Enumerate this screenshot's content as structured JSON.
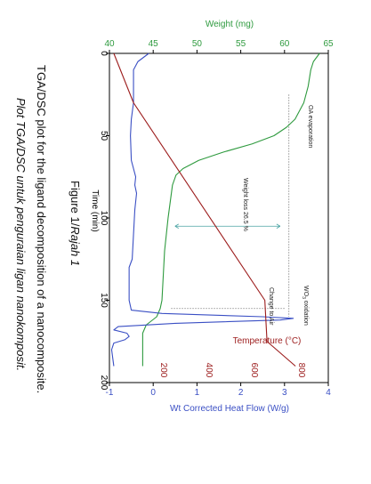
{
  "figure": {
    "caption_title_prefix": "Figure 1/",
    "caption_title_italic": "Rajah 1",
    "caption_en": "TGA/DSC plot for the ligand decomposition of a nanocomposite.",
    "caption_ms": "Plot TGA/DSC untuk penguraian ligan nanokomposit."
  },
  "chart_data": {
    "type": "line",
    "x": {
      "label": "Time (min)",
      "range": [
        0,
        200
      ],
      "ticks": [
        0,
        50,
        100,
        150,
        200
      ],
      "tick_labels": [
        "0",
        "50",
        "100",
        "150",
        "200"
      ]
    },
    "y_weight": {
      "label": "Weight (mg)",
      "range": [
        40,
        65
      ],
      "ticks": [
        40,
        45,
        50,
        55,
        60,
        65
      ],
      "tick_labels": [
        "40",
        "45",
        "50",
        "55",
        "60",
        "65"
      ],
      "color": "#2e9a3e"
    },
    "y_heat": {
      "label": "Wt Corrected Heat Flow (W/g)",
      "range": [
        -1,
        4
      ],
      "ticks": [
        -1,
        0,
        1,
        2,
        3,
        4
      ],
      "tick_labels": [
        "-1",
        "0",
        "1",
        "2",
        "3",
        "4"
      ],
      "color": "#3a4fc4"
    },
    "y_temperature": {
      "label": "Temperature (°C)",
      "ticks": [
        200,
        400,
        600,
        800
      ],
      "tick_labels": [
        "200",
        "400",
        "600",
        "800"
      ],
      "color": "#9c1c1c"
    },
    "annotations": {
      "oa_evaporation": "OA evaporation",
      "weight_loss": "Weight loss 26.5 %",
      "change_to_air": "Change to Air",
      "wo3_oxidation_prefix": "WO",
      "wo3_oxidation_sub": "3",
      "wo3_oxidation_suffix": " oxidation"
    },
    "series": [
      {
        "key": "weight",
        "axis": "y_weight",
        "color": "#2e9a3e",
        "points": [
          [
            0,
            64.0
          ],
          [
            5,
            63.3
          ],
          [
            10,
            63.0
          ],
          [
            20,
            62.7
          ],
          [
            30,
            62.2
          ],
          [
            40,
            61.2
          ],
          [
            45,
            60.2
          ],
          [
            50,
            58.8
          ],
          [
            55,
            56.3
          ],
          [
            60,
            53.0
          ],
          [
            65,
            50.2
          ],
          [
            70,
            48.4
          ],
          [
            74,
            47.6
          ],
          [
            80,
            47.2
          ],
          [
            100,
            46.7
          ],
          [
            120,
            46.3
          ],
          [
            140,
            46.1
          ],
          [
            150,
            46.0
          ],
          [
            155,
            45.8
          ],
          [
            160,
            45.4
          ],
          [
            165,
            44.2
          ],
          [
            170,
            43.8
          ],
          [
            190,
            43.8
          ]
        ]
      },
      {
        "key": "heat_flow",
        "axis": "y_heat",
        "color": "#3a4fc4",
        "points": [
          [
            0,
            -0.1
          ],
          [
            5,
            -0.35
          ],
          [
            10,
            -0.45
          ],
          [
            15,
            -0.45
          ],
          [
            30,
            -0.45
          ],
          [
            40,
            -0.5
          ],
          [
            50,
            -0.52
          ],
          [
            65,
            -0.5
          ],
          [
            75,
            -0.4
          ],
          [
            80,
            -0.42
          ],
          [
            85,
            -0.38
          ],
          [
            95,
            -0.42
          ],
          [
            110,
            -0.45
          ],
          [
            125,
            -0.48
          ],
          [
            130,
            -0.55
          ],
          [
            150,
            -0.55
          ],
          [
            156,
            -0.5
          ],
          [
            158,
            0.2
          ],
          [
            160,
            2.5
          ],
          [
            161,
            3.2
          ],
          [
            162,
            2.9
          ],
          [
            164,
            0.5
          ],
          [
            166,
            -0.8
          ],
          [
            168,
            -0.9
          ],
          [
            170,
            -0.6
          ],
          [
            172,
            -0.55
          ],
          [
            174,
            -0.65
          ],
          [
            176,
            -0.9
          ],
          [
            180,
            -0.95
          ],
          [
            190,
            -0.9
          ]
        ]
      },
      {
        "key": "temperature",
        "axis": "y_heat",
        "color": "#9c1c1c",
        "points": [
          [
            0,
            -0.9
          ],
          [
            30,
            -0.45
          ],
          [
            150,
            2.55
          ],
          [
            175,
            2.6
          ],
          [
            190,
            3.25
          ]
        ]
      }
    ],
    "guides": [
      {
        "from": [
          25,
          3.1
        ],
        "to": [
          160,
          3.1
        ],
        "style": "dotted",
        "color": "#7a7a7a"
      },
      {
        "from": [
          105,
          0.5
        ],
        "to": [
          105,
          2.9
        ],
        "style": "solid-arrows",
        "color": "#4aa3a3"
      },
      {
        "from": [
          155,
          3.0
        ],
        "to": [
          155,
          0.4
        ],
        "style": "dotted",
        "color": "#7a7a7a"
      }
    ]
  }
}
